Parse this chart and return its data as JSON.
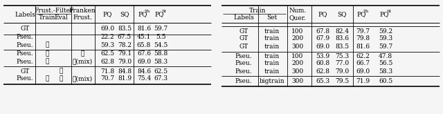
{
  "left_table": {
    "rows": [
      {
        "Labels": "GT",
        "Train": "",
        "Eval": "",
        "Franken": "",
        "PQ": "69.0",
        "SQ": "83.5",
        "PQTh": "81.6",
        "PQSt": "59.7",
        "group": 0
      },
      {
        "Labels": "Pseu.",
        "Train": "",
        "Eval": "",
        "Franken": "",
        "PQ": "22.2",
        "SQ": "67.5",
        "PQTh": "45.1",
        "PQSt": "5.5",
        "group": 1
      },
      {
        "Labels": "Pseu.",
        "Train": "✓",
        "Eval": "",
        "Franken": "",
        "PQ": "59.3",
        "SQ": "78.2",
        "PQTh": "65.8",
        "PQSt": "54.5",
        "group": 1
      },
      {
        "Labels": "Pseu.",
        "Train": "✓",
        "Eval": "",
        "Franken": "✓",
        "PQ": "62.5",
        "SQ": "79.1",
        "PQTh": "67.6",
        "PQSt": "58.8",
        "group": 2
      },
      {
        "Labels": "Pseu.",
        "Train": "✓",
        "Eval": "",
        "Franken": "✓(mix)",
        "PQ": "62.8",
        "SQ": "79.0",
        "PQTh": "69.0",
        "PQSt": "58.3",
        "group": 2
      },
      {
        "Labels": "GT",
        "Train": "",
        "Eval": "✓",
        "Franken": "",
        "PQ": "71.8",
        "SQ": "84.8",
        "PQTh": "84.6",
        "PQSt": "62.5",
        "group": 3
      },
      {
        "Labels": "Pseu.",
        "Train": "✓",
        "Eval": "✓",
        "Franken": "✓(mix)",
        "PQ": "70.7",
        "SQ": "81.9",
        "PQTh": "75.4",
        "PQSt": "67.3",
        "group": 3
      }
    ]
  },
  "right_table": {
    "rows": [
      {
        "Labels": "GT",
        "TrainSet": "train",
        "NumQuer": "100",
        "PQ": "67.8",
        "SQ": "82.4",
        "PQTh": "79.7",
        "PQSt": "59.2",
        "group": 0
      },
      {
        "Labels": "GT",
        "TrainSet": "train",
        "NumQuer": "200",
        "PQ": "67.9",
        "SQ": "83.6",
        "PQTh": "79.8",
        "PQSt": "59.3",
        "group": 0
      },
      {
        "Labels": "GT",
        "TrainSet": "train",
        "NumQuer": "300",
        "PQ": "69.0",
        "SQ": "83.5",
        "PQTh": "81.6",
        "PQSt": "59.7",
        "group": 0
      },
      {
        "Labels": "Pseu.",
        "TrainSet": "train",
        "NumQuer": "100",
        "PQ": "53.9",
        "SQ": "75.3",
        "PQTh": "62.2",
        "PQSt": "47.8",
        "group": 1
      },
      {
        "Labels": "Pseu.",
        "TrainSet": "train",
        "NumQuer": "200",
        "PQ": "60.8",
        "SQ": "77.0",
        "PQTh": "66.7",
        "PQSt": "56.5",
        "group": 1
      },
      {
        "Labels": "Pseu.",
        "TrainSet": "train",
        "NumQuer": "300",
        "PQ": "62.8",
        "SQ": "79.0",
        "PQTh": "69.0",
        "PQSt": "58.3",
        "group": 1
      },
      {
        "Labels": "Pseu.",
        "TrainSet": "bigtrain",
        "NumQuer": "300",
        "PQ": "65.3",
        "SQ": "79.5",
        "PQTh": "71.9",
        "PQSt": "60.5",
        "group": 2
      }
    ]
  },
  "font_size": 6.5,
  "bg_color": "#f5f5f5"
}
